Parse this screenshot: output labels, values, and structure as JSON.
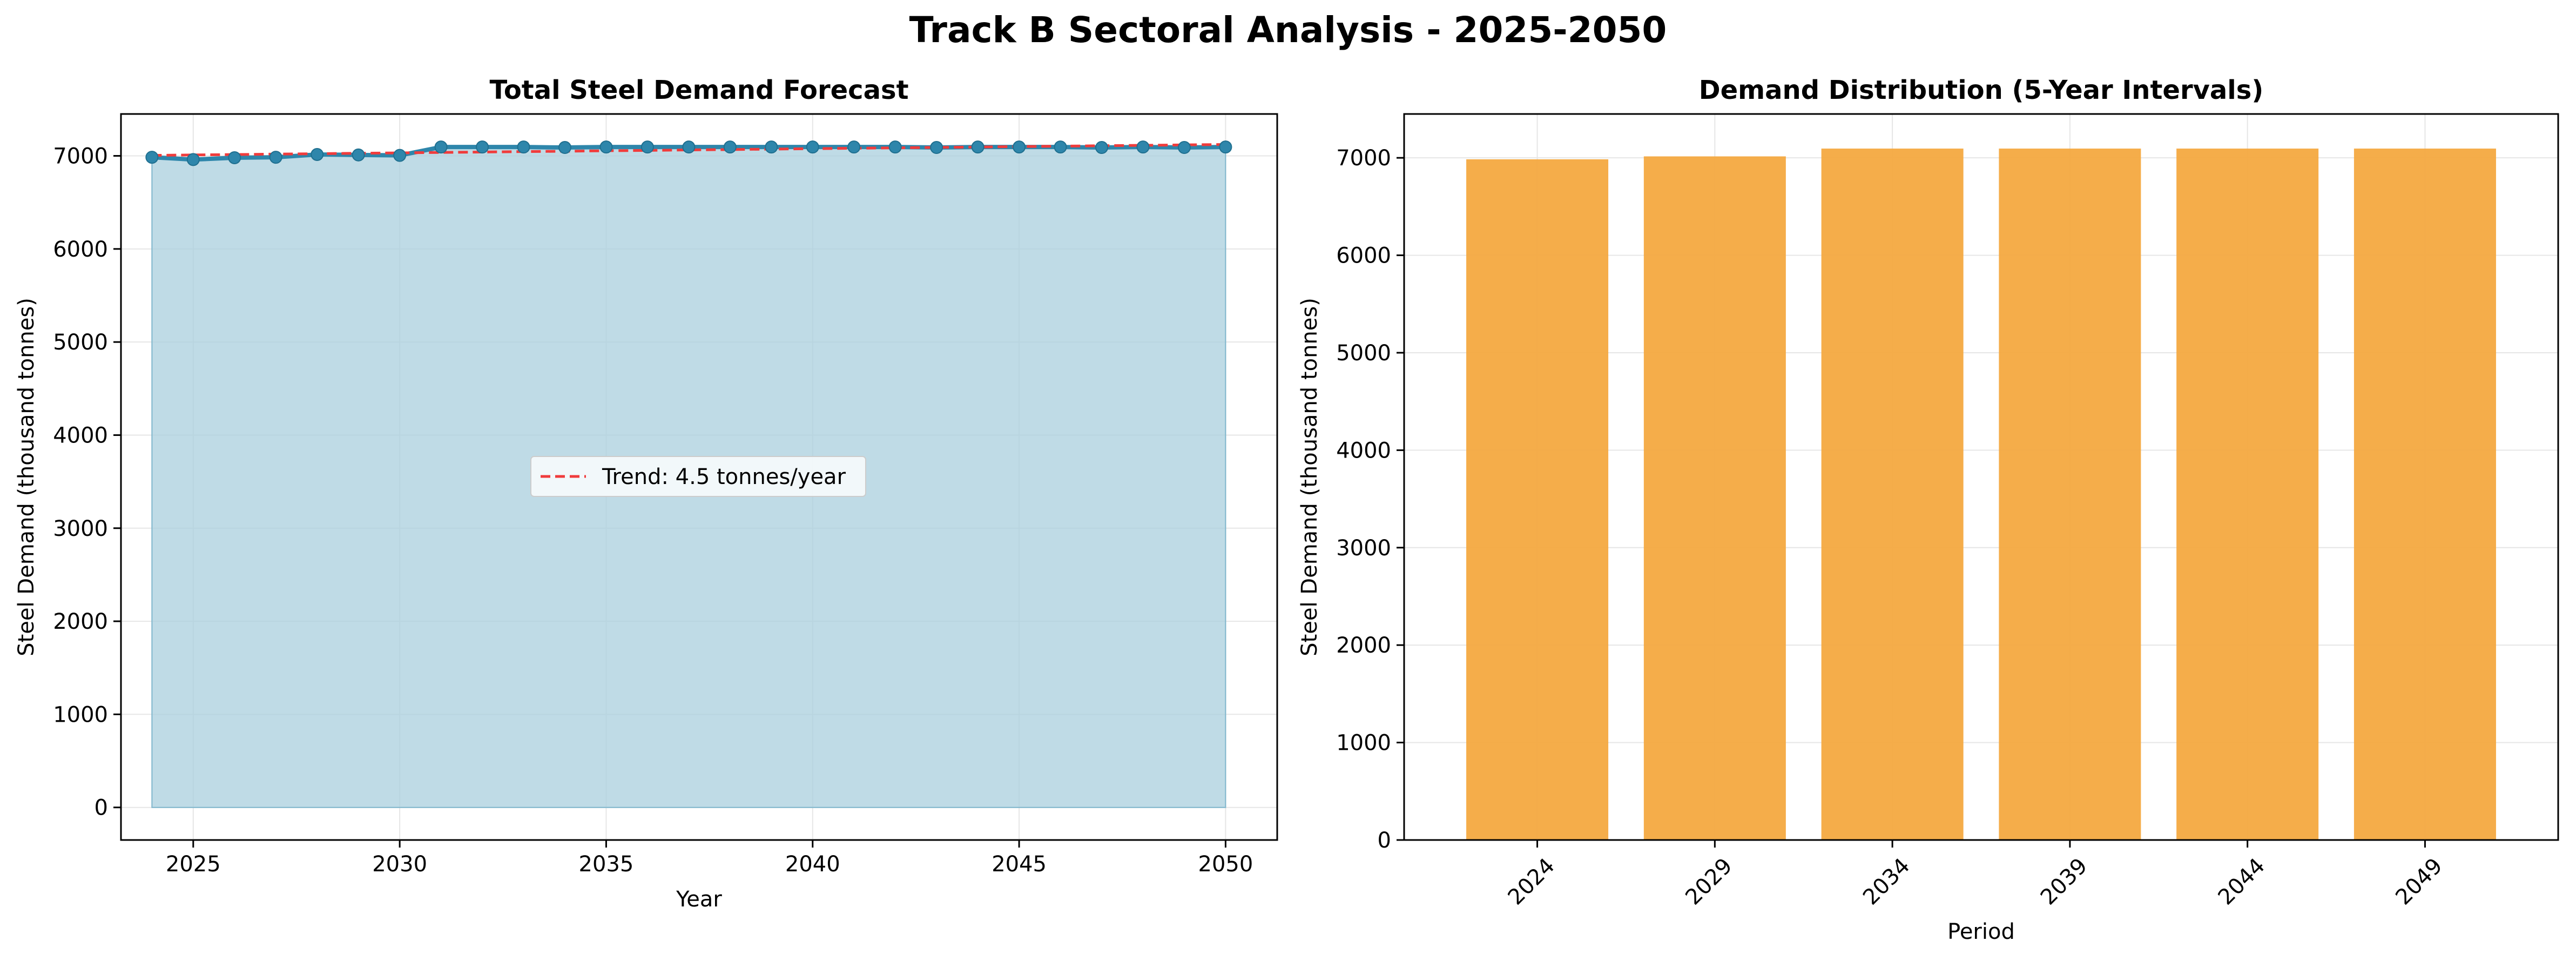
{
  "figure": {
    "suptitle": "Track B Sectoral Analysis - 2025-2050"
  },
  "colors": {
    "line": "#2E86AB",
    "fill": "#A9CFDE",
    "trend": "#F03C3C",
    "bar": "#F4A940",
    "grid": "#E6E6E6",
    "axis": "#000000"
  },
  "chart_data": [
    {
      "type": "line",
      "title": "Total Steel Demand Forecast",
      "xlabel": "Year",
      "ylabel": "Steel Demand (thousand tonnes)",
      "xlim": [
        2023.25,
        2051.25
      ],
      "ylim": [
        -350,
        7450
      ],
      "xticks": [
        2025,
        2030,
        2035,
        2040,
        2045,
        2050
      ],
      "yticks": [
        0,
        1000,
        2000,
        3000,
        4000,
        5000,
        6000,
        7000
      ],
      "grid": true,
      "x": [
        2024,
        2025,
        2026,
        2027,
        2028,
        2029,
        2030,
        2031,
        2032,
        2033,
        2034,
        2035,
        2036,
        2037,
        2038,
        2039,
        2040,
        2041,
        2042,
        2043,
        2044,
        2045,
        2046,
        2047,
        2048,
        2049,
        2050
      ],
      "series": [
        {
          "name": "Total Steel Demand",
          "values": [
            6985,
            6960,
            6980,
            6985,
            7015,
            7010,
            7005,
            7095,
            7095,
            7095,
            7090,
            7095,
            7095,
            7095,
            7095,
            7095,
            7095,
            7095,
            7095,
            7090,
            7095,
            7095,
            7095,
            7090,
            7095,
            7090,
            7095
          ],
          "filled_area": true
        },
        {
          "name": "Trend: 4.5 tonnes/year",
          "style": "dashed",
          "values": [
            7005,
            7010,
            7014,
            7019,
            7023,
            7028,
            7032,
            7037,
            7041,
            7046,
            7050,
            7055,
            7059,
            7064,
            7068,
            7073,
            7077,
            7082,
            7086,
            7091,
            7095,
            7100,
            7104,
            7109,
            7113,
            7118,
            7122
          ]
        }
      ],
      "legend": {
        "entries": [
          "Trend: 4.5 tonnes/year"
        ],
        "placement": "center"
      }
    },
    {
      "type": "bar",
      "title": "Demand Distribution (5-Year Intervals)",
      "xlabel": "Period",
      "ylabel": "Steel Demand (thousand tonnes)",
      "categories": [
        "2024",
        "2029",
        "2034",
        "2039",
        "2044",
        "2049"
      ],
      "values": [
        6985,
        7015,
        7095,
        7095,
        7095,
        7095
      ],
      "ylim": [
        0,
        7450
      ],
      "yticks": [
        0,
        1000,
        2000,
        3000,
        4000,
        5000,
        6000,
        7000
      ],
      "grid": true,
      "tick_rotation": 45
    }
  ]
}
